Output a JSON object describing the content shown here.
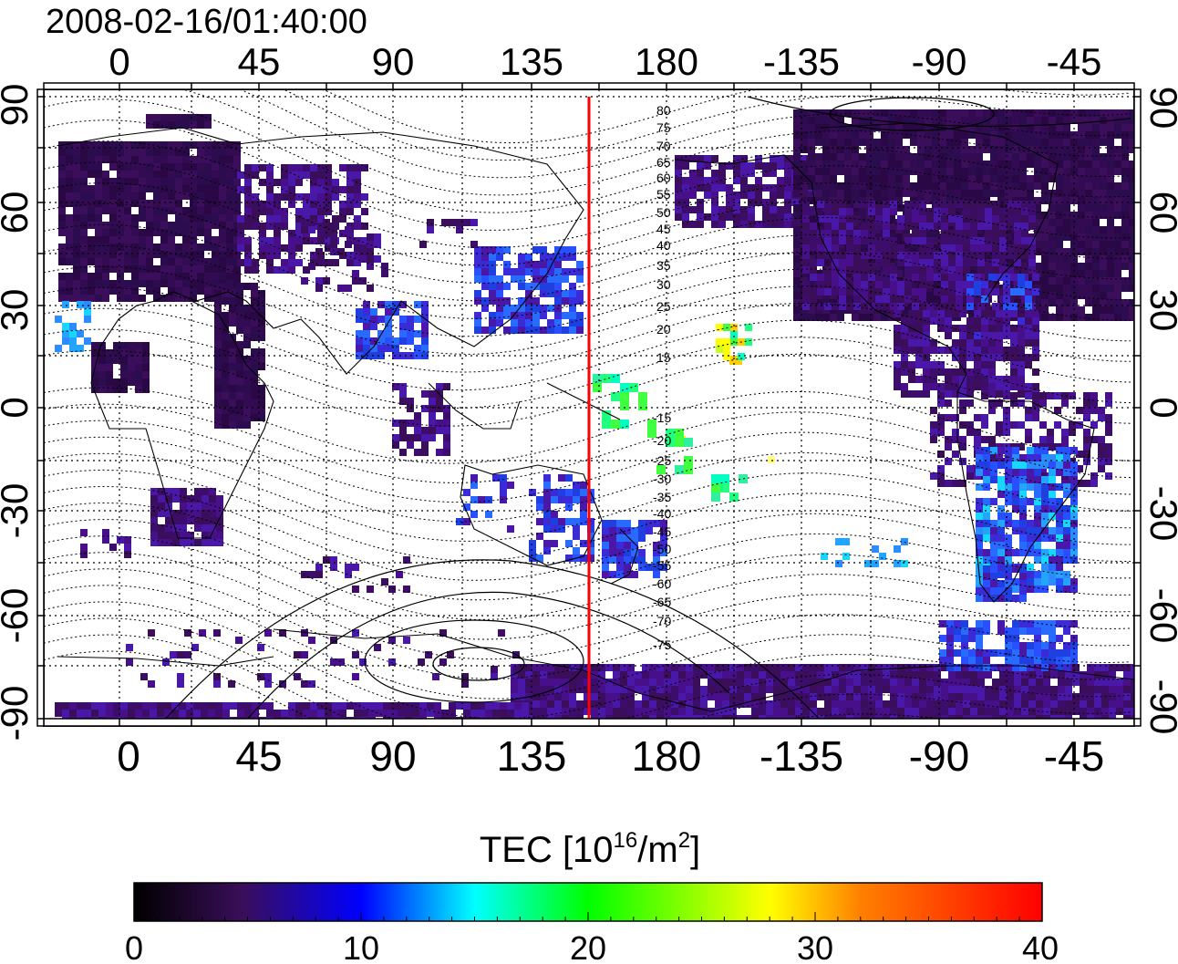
{
  "header": {
    "timestamp": "2008-02-16/01:40:00"
  },
  "map": {
    "lon_ticks_bottom": [
      "0",
      "45",
      "90",
      "135",
      "180",
      "-135",
      "-90",
      "-45"
    ],
    "lon_ticks_top": [
      "0",
      "45",
      "90",
      "135",
      "180",
      "-135",
      "-90",
      "-45"
    ],
    "lat_ticks": [
      "90",
      "60",
      "30",
      "0",
      "-30",
      "-60",
      "-90"
    ],
    "contour_labels": [
      "80",
      "75",
      "70",
      "65",
      "60",
      "55",
      "50",
      "45",
      "40",
      "35",
      "30",
      "25",
      "20",
      "15",
      "-15",
      "-20",
      "-25",
      "-30",
      "-35",
      "-40",
      "-45",
      "-50",
      "-55",
      "-60",
      "-65",
      "-70",
      "-75"
    ],
    "terminator_color": "#ff0000",
    "grid": "dotted"
  },
  "colorbar": {
    "title_base": "TEC  [10",
    "title_sup1": "16",
    "title_mid": "/m",
    "title_sup2": "2",
    "title_end": "]",
    "ticks": [
      "0",
      "10",
      "20",
      "30",
      "40"
    ],
    "colors": [
      "#000000",
      "#3a0e5a",
      "#0000ff",
      "#00ffff",
      "#00ff00",
      "#ffff00",
      "#ff7f00",
      "#ff0000"
    ]
  }
}
